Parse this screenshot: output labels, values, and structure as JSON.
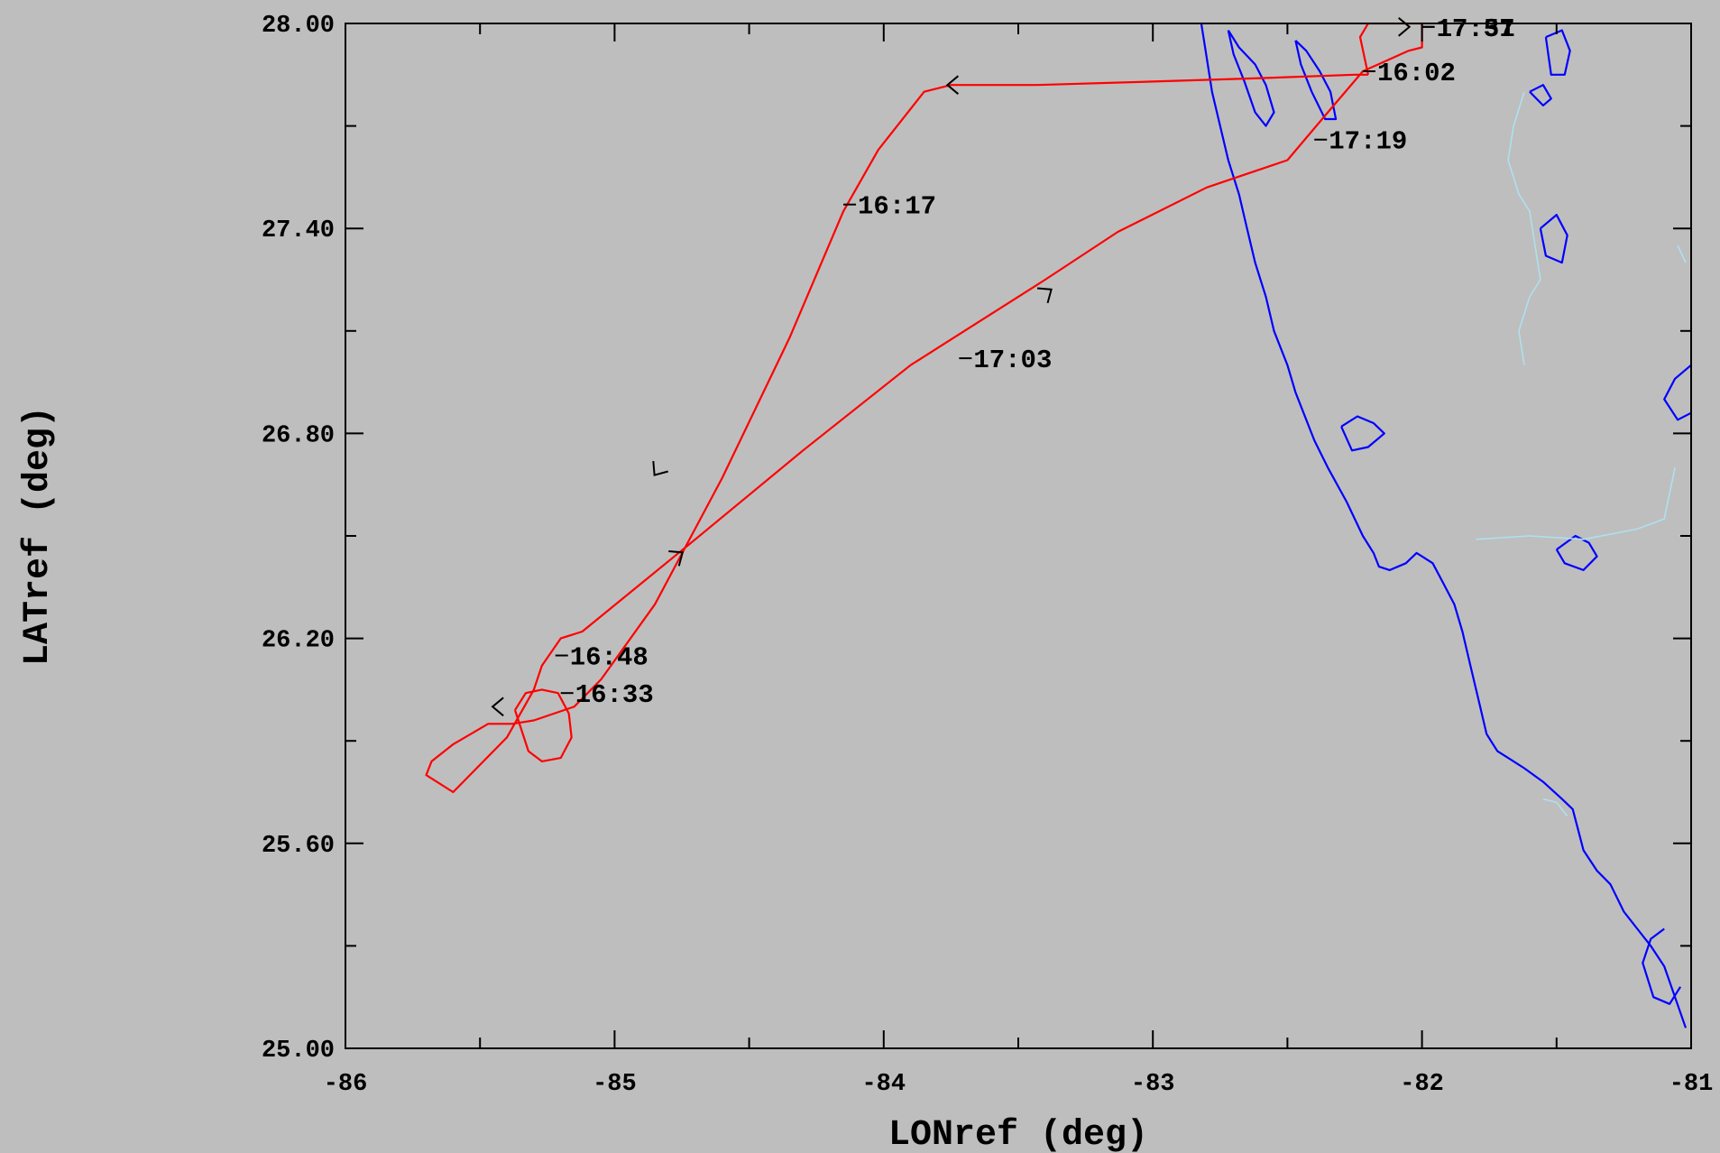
{
  "chart_data": {
    "type": "line",
    "xlabel": "LONref (deg)",
    "ylabel": "LATref (deg)",
    "xlim": [
      -86,
      -81
    ],
    "ylim": [
      25.0,
      28.0
    ],
    "x_ticks": [
      -86,
      -85,
      -84,
      -83,
      -82,
      -81
    ],
    "x_tick_labels": [
      "-86",
      "-85",
      "-84",
      "-83",
      "-82",
      "-81"
    ],
    "y_ticks": [
      25.0,
      25.6,
      26.2,
      26.8,
      27.4,
      28.0
    ],
    "y_tick_labels": [
      "25.00",
      "25.60",
      "26.20",
      "26.80",
      "27.40",
      "28.00"
    ],
    "colors": {
      "track": "#ff0000",
      "coast": "#0000ff",
      "border": "#aee0f0",
      "ticks": "#000000",
      "background": "#bebebe"
    },
    "series": [
      {
        "color": "#ff0000",
        "x": [
          -82.2,
          -82.25,
          -82.6,
          -83.0,
          -83.43,
          -83.75,
          -83.85,
          -83.95,
          -84.02,
          -84.15,
          -84.35,
          -84.6,
          -84.85,
          -85.05,
          -85.15,
          -85.3,
          -85.38,
          -85.47,
          -85.6,
          -85.68,
          -85.7,
          -85.6,
          -85.4,
          -85.3,
          -85.27,
          -85.2,
          -85.12,
          -84.7,
          -84.3,
          -83.9,
          -83.4,
          -83.13,
          -82.8,
          -82.5,
          -82.35,
          -82.22,
          -82.05,
          -82.0,
          -82.0,
          -82.2,
          -82.23,
          -82.2
        ],
        "y": [
          27.85,
          27.85,
          27.84,
          27.83,
          27.82,
          27.82,
          27.8,
          27.7,
          27.63,
          27.45,
          27.08,
          26.67,
          26.3,
          26.08,
          26.0,
          25.96,
          25.95,
          25.95,
          25.89,
          25.84,
          25.8,
          25.75,
          25.91,
          26.05,
          26.12,
          26.2,
          26.22,
          26.49,
          26.75,
          27.0,
          27.25,
          27.39,
          27.52,
          27.6,
          27.74,
          27.86,
          27.92,
          27.93,
          28.0,
          28.0,
          27.96,
          27.85
        ]
      },
      {
        "color": "#ff0000",
        "x": [
          -85.37,
          -85.33,
          -85.27,
          -85.21,
          -85.17,
          -85.16,
          -85.2,
          -85.27,
          -85.32,
          -85.37
        ],
        "y": [
          25.99,
          26.04,
          26.05,
          26.04,
          25.98,
          25.91,
          25.85,
          25.84,
          25.87,
          25.99
        ]
      }
    ],
    "time_labels": [
      {
        "text": "16:02",
        "lon": -82.22,
        "lat": 27.86
      },
      {
        "text": "16:17",
        "lon": -84.15,
        "lat": 27.47
      },
      {
        "text": "16:33",
        "lon": -85.2,
        "lat": 26.04
      },
      {
        "text": "16:48",
        "lon": -85.22,
        "lat": 26.15
      },
      {
        "text": "17:03",
        "lon": -83.72,
        "lat": 27.02
      },
      {
        "text": "17:19",
        "lon": -82.4,
        "lat": 27.66
      },
      {
        "text": "17:37",
        "lon": -82.0,
        "lat": 27.99
      },
      {
        "text": "17:51",
        "lon": -82.0,
        "lat": 27.99
      }
    ],
    "direction_arrows": [
      {
        "lon": -83.76,
        "lat": 27.82,
        "heading": "west"
      },
      {
        "lon": -84.85,
        "lat": 26.68,
        "heading": "south-west"
      },
      {
        "lon": -85.45,
        "lat": 26.0,
        "heading": "west"
      },
      {
        "lon": -84.75,
        "lat": 26.45,
        "heading": "north-east"
      },
      {
        "lon": -83.38,
        "lat": 27.22,
        "heading": "north-east"
      },
      {
        "lon": -82.05,
        "lat": 27.99,
        "heading": "east"
      }
    ],
    "coastline": [
      {
        "color": "#0000ff",
        "x": [
          -82.82,
          -82.8,
          -82.78,
          -82.75,
          -82.72,
          -82.68,
          -82.65,
          -82.62,
          -82.58,
          -82.55,
          -82.5,
          -82.47,
          -82.44,
          -82.4,
          -82.35,
          -82.28,
          -82.22,
          -82.18,
          -82.16,
          -82.12,
          -82.06,
          -82.02,
          -82.0,
          -81.96,
          -81.92,
          -81.88,
          -81.85,
          -81.82,
          -81.79,
          -81.76,
          -81.72,
          -81.68,
          -81.62,
          -81.55,
          -81.48,
          -81.44,
          -81.42,
          -81.4,
          -81.35,
          -81.3,
          -81.25,
          -81.2,
          -81.15,
          -81.1,
          -81.06,
          -81.02
        ],
        "y": [
          28.0,
          27.9,
          27.8,
          27.7,
          27.6,
          27.5,
          27.4,
          27.3,
          27.2,
          27.1,
          27.0,
          26.92,
          26.86,
          26.78,
          26.7,
          26.6,
          26.5,
          26.45,
          26.41,
          26.4,
          26.42,
          26.45,
          26.44,
          26.42,
          26.36,
          26.3,
          26.22,
          26.12,
          26.02,
          25.92,
          25.87,
          25.85,
          25.82,
          25.78,
          25.73,
          25.7,
          25.64,
          25.58,
          25.52,
          25.48,
          25.4,
          25.35,
          25.3,
          25.24,
          25.15,
          25.06
        ]
      },
      {
        "color": "#0000ff",
        "x": [
          -82.72,
          -82.68,
          -82.62,
          -82.58,
          -82.55,
          -82.58,
          -82.62,
          -82.66,
          -82.7,
          -82.72
        ],
        "y": [
          27.98,
          27.93,
          27.88,
          27.82,
          27.74,
          27.7,
          27.74,
          27.83,
          27.91,
          27.98
        ]
      },
      {
        "color": "#0000ff",
        "x": [
          -82.47,
          -82.43,
          -82.38,
          -82.34,
          -82.32,
          -82.36,
          -82.41,
          -82.45,
          -82.47
        ],
        "y": [
          27.95,
          27.92,
          27.86,
          27.8,
          27.72,
          27.72,
          27.8,
          27.88,
          27.95
        ]
      },
      {
        "color": "#0000ff",
        "x": [
          -82.3,
          -82.24,
          -82.18,
          -82.14,
          -82.2,
          -82.26,
          -82.3
        ],
        "y": [
          26.82,
          26.85,
          26.83,
          26.8,
          26.76,
          26.75,
          26.82
        ]
      },
      {
        "color": "#0000ff",
        "x": [
          -81.5,
          -81.43,
          -81.38,
          -81.35,
          -81.4,
          -81.47,
          -81.5
        ],
        "y": [
          26.46,
          26.5,
          26.48,
          26.44,
          26.4,
          26.42,
          26.46
        ]
      },
      {
        "color": "#0000ff",
        "x": [
          -81.54,
          -81.48,
          -81.45,
          -81.47,
          -81.52,
          -81.54
        ],
        "y": [
          27.96,
          27.98,
          27.92,
          27.85,
          27.85,
          27.96
        ]
      },
      {
        "color": "#0000ff",
        "x": [
          -81.6,
          -81.55,
          -81.52,
          -81.55,
          -81.6
        ],
        "y": [
          27.8,
          27.82,
          27.78,
          27.76,
          27.8
        ]
      },
      {
        "color": "#0000ff",
        "x": [
          -81.56,
          -81.5,
          -81.46,
          -81.48,
          -81.54,
          -81.56
        ],
        "y": [
          27.4,
          27.44,
          27.38,
          27.3,
          27.32,
          27.4
        ]
      },
      {
        "color": "#0000ff",
        "x": [
          -81.0,
          -81.06,
          -81.1,
          -81.05,
          -81.0
        ],
        "y": [
          27.0,
          26.96,
          26.9,
          26.84,
          26.86
        ]
      },
      {
        "color": "#0000ff",
        "x": [
          -81.1,
          -81.15,
          -81.18,
          -81.14,
          -81.08,
          -81.04
        ],
        "y": [
          25.35,
          25.32,
          25.25,
          25.15,
          25.13,
          25.18
        ]
      },
      {
        "color": "#aee0f0",
        "x": [
          -81.62,
          -81.66,
          -81.68,
          -81.64,
          -81.6,
          -81.58,
          -81.56,
          -81.6,
          -81.64,
          -81.62
        ],
        "y": [
          27.8,
          27.7,
          27.6,
          27.5,
          27.45,
          27.35,
          27.25,
          27.2,
          27.1,
          27.0
        ]
      },
      {
        "color": "#aee0f0",
        "x": [
          -81.05,
          -81.02
        ],
        "y": [
          27.35,
          27.3
        ]
      },
      {
        "color": "#aee0f0",
        "x": [
          -81.8,
          -81.6,
          -81.4,
          -81.2,
          -81.1,
          -81.06
        ],
        "y": [
          26.49,
          26.5,
          26.49,
          26.52,
          26.55,
          26.7
        ]
      },
      {
        "color": "#aee0f0",
        "x": [
          -81.55,
          -81.5,
          -81.46
        ],
        "y": [
          25.73,
          25.72,
          25.68
        ]
      }
    ]
  }
}
